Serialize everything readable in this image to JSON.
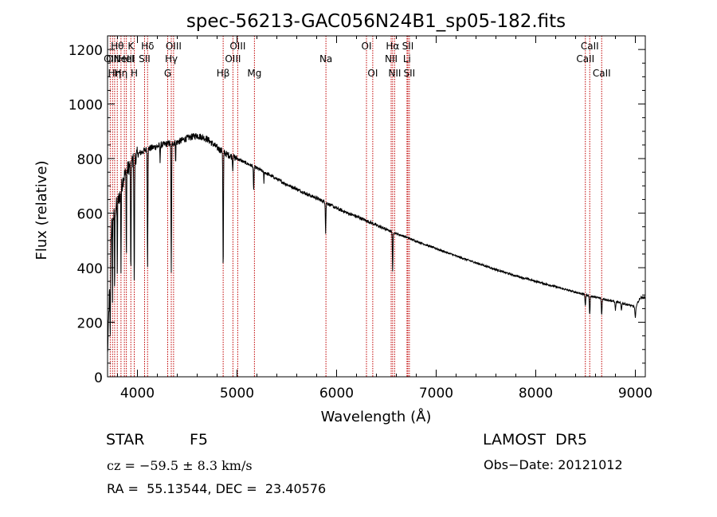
{
  "chart_data": {
    "type": "line",
    "title": "spec-56213-GAC056N24B1_sp05-182.fits",
    "xlabel": "Wavelength (Å)",
    "ylabel": "Flux (relative)",
    "xlim": [
      3700,
      9100
    ],
    "ylim": [
      0,
      1250
    ],
    "xticks": [
      4000,
      5000,
      6000,
      7000,
      8000,
      9000
    ],
    "yticks": [
      0,
      200,
      400,
      600,
      800,
      1000,
      1200
    ],
    "grid": false,
    "line_color": "#000000",
    "marker_color": "#c00000",
    "continuum": [
      [
        3700,
        80
      ],
      [
        3740,
        560
      ],
      [
        3780,
        620
      ],
      [
        3820,
        660
      ],
      [
        3860,
        730
      ],
      [
        3900,
        760
      ],
      [
        3950,
        790
      ],
      [
        4000,
        815
      ],
      [
        4100,
        835
      ],
      [
        4200,
        845
      ],
      [
        4300,
        855
      ],
      [
        4400,
        860
      ],
      [
        4500,
        875
      ],
      [
        4600,
        885
      ],
      [
        4700,
        872
      ],
      [
        4800,
        840
      ],
      [
        4900,
        815
      ],
      [
        5000,
        800
      ],
      [
        5100,
        782
      ],
      [
        5200,
        765
      ],
      [
        5300,
        745
      ],
      [
        5400,
        725
      ],
      [
        5500,
        705
      ],
      [
        5600,
        688
      ],
      [
        5700,
        670
      ],
      [
        5800,
        655
      ],
      [
        5900,
        637
      ],
      [
        6000,
        618
      ],
      [
        6100,
        602
      ],
      [
        6200,
        588
      ],
      [
        6300,
        572
      ],
      [
        6400,
        556
      ],
      [
        6500,
        540
      ],
      [
        6600,
        525
      ],
      [
        6700,
        512
      ],
      [
        6800,
        497
      ],
      [
        7000,
        470
      ],
      [
        7200,
        443
      ],
      [
        7400,
        418
      ],
      [
        7600,
        393
      ],
      [
        7800,
        370
      ],
      [
        8000,
        350
      ],
      [
        8200,
        330
      ],
      [
        8400,
        310
      ],
      [
        8600,
        292
      ],
      [
        8800,
        275
      ],
      [
        8950,
        262
      ],
      [
        9000,
        255
      ],
      [
        9050,
        290
      ],
      [
        9100,
        290
      ]
    ],
    "absorption_lines": [
      {
        "center": 3727,
        "depth": 250,
        "width": 4
      },
      {
        "center": 3750,
        "depth": 280,
        "width": 3
      },
      {
        "center": 3771,
        "depth": 300,
        "width": 3
      },
      {
        "center": 3798,
        "depth": 250,
        "width": 3
      },
      {
        "center": 3835,
        "depth": 300,
        "width": 3
      },
      {
        "center": 3889,
        "depth": 330,
        "width": 3
      },
      {
        "center": 3934,
        "depth": 430,
        "width": 4
      },
      {
        "center": 3968,
        "depth": 470,
        "width": 4
      },
      {
        "center": 4102,
        "depth": 430,
        "width": 4
      },
      {
        "center": 4227,
        "depth": 60,
        "width": 3
      },
      {
        "center": 4340,
        "depth": 480,
        "width": 4
      },
      {
        "center": 4384,
        "depth": 70,
        "width": 3
      },
      {
        "center": 4861,
        "depth": 440,
        "width": 4
      },
      {
        "center": 4957,
        "depth": 50,
        "width": 3
      },
      {
        "center": 5167,
        "depth": 90,
        "width": 4
      },
      {
        "center": 5270,
        "depth": 40,
        "width": 3
      },
      {
        "center": 5890,
        "depth": 110,
        "width": 4
      },
      {
        "center": 6563,
        "depth": 150,
        "width": 4
      },
      {
        "center": 8498,
        "depth": 40,
        "width": 5
      },
      {
        "center": 8542,
        "depth": 70,
        "width": 5
      },
      {
        "center": 8662,
        "depth": 60,
        "width": 5
      },
      {
        "center": 8800,
        "depth": 30,
        "width": 5
      },
      {
        "center": 8860,
        "depth": 25,
        "width": 5
      },
      {
        "center": 9000,
        "depth": 40,
        "width": 6
      }
    ],
    "line_markers": [
      {
        "wavelength": 3727,
        "label": "OII",
        "row": 2
      },
      {
        "wavelength": 3750,
        "label": "OII",
        "row": 2
      },
      {
        "wavelength": 3771,
        "label": "Hη",
        "row": 3
      },
      {
        "wavelength": 3798,
        "label": "Hθ",
        "row": 1
      },
      {
        "wavelength": 3835,
        "label": "Hη",
        "row": 3
      },
      {
        "wavelength": 3869,
        "label": "NeIII",
        "row": 2
      },
      {
        "wavelength": 3889,
        "label": "HeI",
        "row": 2
      },
      {
        "wavelength": 3934,
        "label": "K",
        "row": 1
      },
      {
        "wavelength": 3968,
        "label": "H",
        "row": 3
      },
      {
        "wavelength": 4072,
        "label": "SII",
        "row": 2
      },
      {
        "wavelength": 4102,
        "label": "Hδ",
        "row": 1
      },
      {
        "wavelength": 4304,
        "label": "G",
        "row": 3
      },
      {
        "wavelength": 4340,
        "label": "Hγ",
        "row": 2
      },
      {
        "wavelength": 4363,
        "label": "OIII",
        "row": 1
      },
      {
        "wavelength": 4861,
        "label": "Hβ",
        "row": 3
      },
      {
        "wavelength": 4959,
        "label": "OIII",
        "row": 2
      },
      {
        "wavelength": 5007,
        "label": "OIII",
        "row": 1
      },
      {
        "wavelength": 5175,
        "label": "Mg",
        "row": 3
      },
      {
        "wavelength": 5893,
        "label": "Na",
        "row": 2
      },
      {
        "wavelength": 6300,
        "label": "OI",
        "row": 1
      },
      {
        "wavelength": 6363,
        "label": "OI",
        "row": 3
      },
      {
        "wavelength": 6548,
        "label": "NII",
        "row": 2
      },
      {
        "wavelength": 6563,
        "label": "Hα",
        "row": 1
      },
      {
        "wavelength": 6583,
        "label": "NII",
        "row": 3
      },
      {
        "wavelength": 6707,
        "label": "Li",
        "row": 2
      },
      {
        "wavelength": 6716,
        "label": "SII",
        "row": 1
      },
      {
        "wavelength": 6731,
        "label": "SII",
        "row": 3
      },
      {
        "wavelength": 8498,
        "label": "CaII",
        "row": 2
      },
      {
        "wavelength": 8542,
        "label": "CaII",
        "row": 1
      },
      {
        "wavelength": 8662,
        "label": "CaII",
        "row": 3
      }
    ]
  },
  "info": {
    "object_class": "STAR",
    "subclass": "F5",
    "survey": "LAMOST  DR5",
    "velocity": "cz = −59.5 ± 8.3 km/s",
    "obs_date": "Obs−Date: 20121012",
    "coords": "RA =  55.13544, DEC =  23.40576"
  }
}
